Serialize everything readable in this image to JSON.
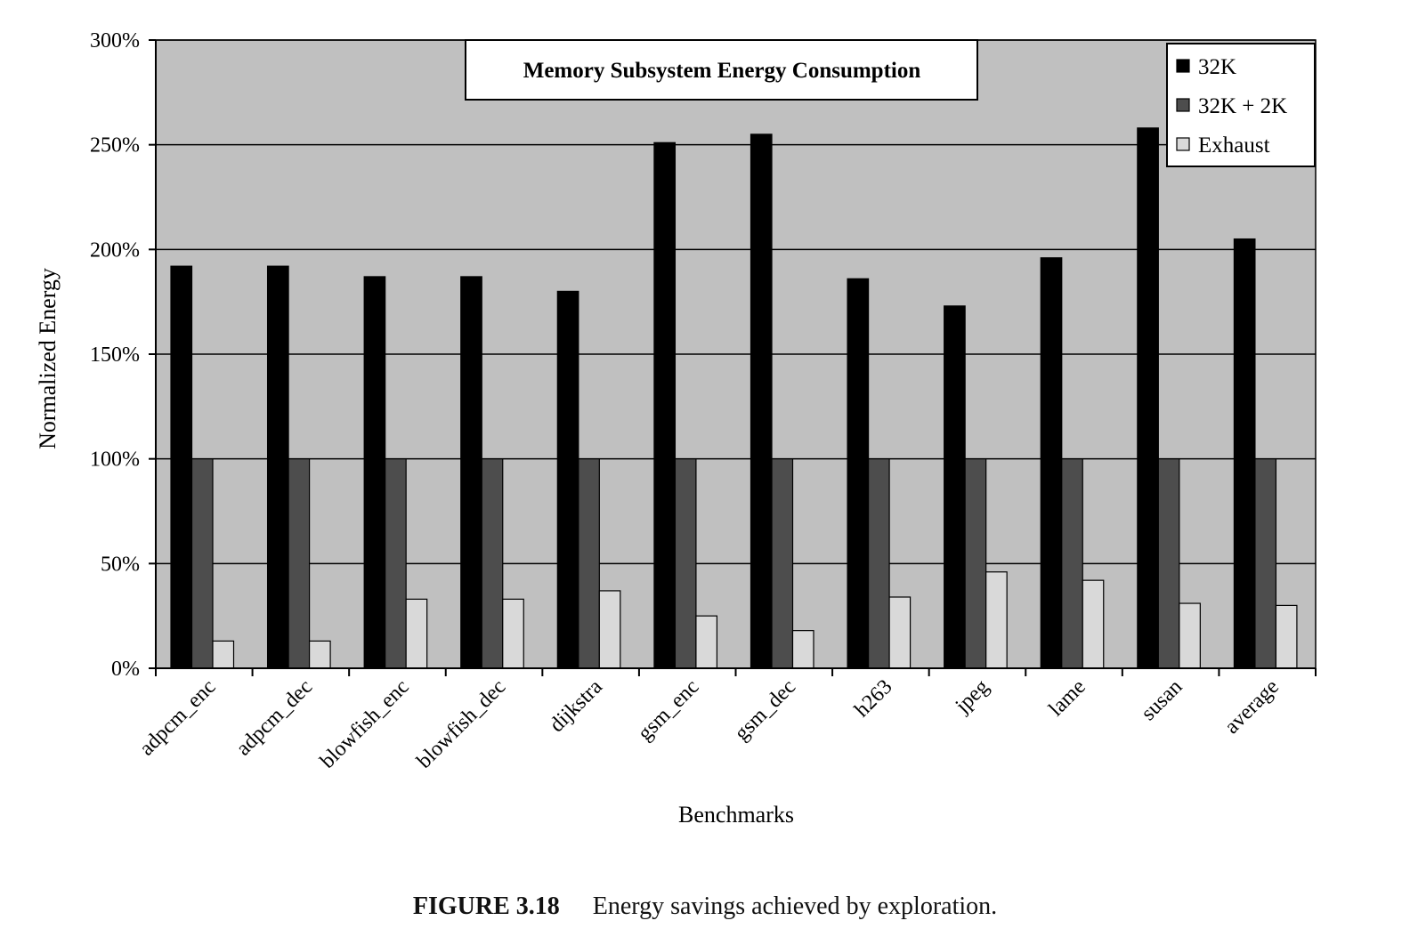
{
  "chart_data": {
    "type": "bar",
    "title": "Memory Subsystem Energy Consumption",
    "xlabel": "Benchmarks",
    "ylabel": "Normalized Energy",
    "ylim": [
      0,
      300
    ],
    "yticks": [
      "0%",
      "50%",
      "100%",
      "150%",
      "200%",
      "250%",
      "300%"
    ],
    "ytick_values": [
      0,
      50,
      100,
      150,
      200,
      250,
      300
    ],
    "grid": true,
    "legend_position": "top-right",
    "categories": [
      "adpcm_enc",
      "adpcm_dec",
      "blowfish_enc",
      "blowfish_dec",
      "dijkstra",
      "gsm_enc",
      "gsm_dec",
      "h263",
      "jpeg",
      "lame",
      "susan",
      "average"
    ],
    "series": [
      {
        "name": "32K",
        "color": "#000000",
        "values": [
          192,
          192,
          187,
          187,
          180,
          251,
          255,
          186,
          173,
          196,
          258,
          205
        ]
      },
      {
        "name": "32K + 2K",
        "color": "#4d4d4d",
        "values": [
          100,
          100,
          100,
          100,
          100,
          100,
          100,
          100,
          100,
          100,
          100,
          100
        ]
      },
      {
        "name": "Exhaust",
        "color": "#d9d9d9",
        "values": [
          13,
          13,
          33,
          33,
          37,
          25,
          18,
          34,
          46,
          42,
          31,
          30
        ]
      }
    ],
    "plot_background": "#c0c0c0"
  },
  "caption": {
    "label": "FIGURE 3.18",
    "text": "Energy savings achieved by exploration."
  }
}
